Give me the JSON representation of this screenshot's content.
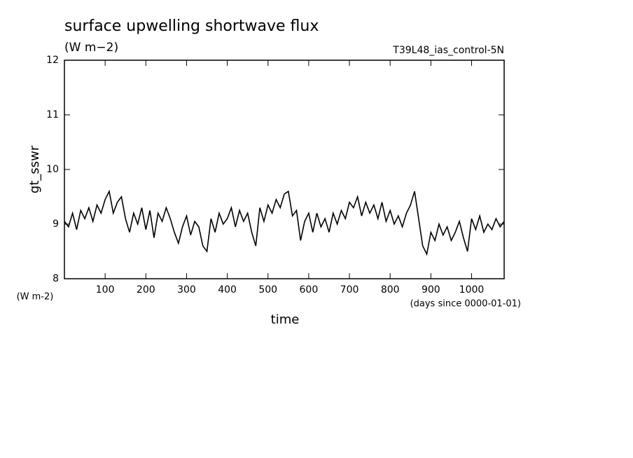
{
  "chart_data": {
    "type": "line",
    "title": "surface upwelling shortwave flux",
    "subtitle": "(W m−2)",
    "run_label": "T39L48_ias_control-5N",
    "ylabel": "gt_sswr",
    "yunit": "(W m-2)",
    "xlabel": "time",
    "xunit": "(days since 0000-01-01)",
    "xlim": [
      0,
      1080
    ],
    "ylim": [
      8,
      12
    ],
    "xticks": [
      100,
      200,
      300,
      400,
      500,
      600,
      700,
      800,
      900,
      1000
    ],
    "yticks": [
      8,
      9,
      10,
      11,
      12
    ],
    "x": [
      0,
      10,
      20,
      30,
      40,
      50,
      60,
      70,
      80,
      90,
      100,
      110,
      120,
      130,
      140,
      150,
      160,
      170,
      180,
      190,
      200,
      210,
      220,
      230,
      240,
      250,
      260,
      270,
      280,
      290,
      300,
      310,
      320,
      330,
      340,
      350,
      360,
      370,
      380,
      390,
      400,
      410,
      420,
      430,
      440,
      450,
      460,
      470,
      480,
      490,
      500,
      510,
      520,
      530,
      540,
      550,
      560,
      570,
      580,
      590,
      600,
      610,
      620,
      630,
      640,
      650,
      660,
      670,
      680,
      690,
      700,
      710,
      720,
      730,
      740,
      750,
      760,
      770,
      780,
      790,
      800,
      810,
      820,
      830,
      840,
      850,
      860,
      870,
      880,
      890,
      900,
      910,
      920,
      930,
      940,
      950,
      960,
      970,
      980,
      990,
      1000,
      1010,
      1020,
      1030,
      1040,
      1050,
      1060,
      1070,
      1080
    ],
    "series": [
      {
        "color": "#000000",
        "values": [
          9.05,
          8.95,
          9.2,
          8.9,
          9.25,
          9.1,
          9.3,
          9.05,
          9.35,
          9.2,
          9.45,
          9.6,
          9.2,
          9.4,
          9.5,
          9.1,
          8.85,
          9.2,
          9.0,
          9.3,
          8.9,
          9.25,
          8.75,
          9.2,
          9.05,
          9.3,
          9.1,
          8.85,
          8.65,
          8.95,
          9.15,
          8.8,
          9.05,
          8.95,
          8.6,
          8.5,
          9.1,
          8.85,
          9.2,
          9.0,
          9.1,
          9.3,
          8.95,
          9.25,
          9.05,
          9.2,
          8.85,
          8.6,
          9.3,
          9.05,
          9.35,
          9.2,
          9.45,
          9.3,
          9.55,
          9.6,
          9.15,
          9.25,
          8.7,
          9.05,
          9.2,
          8.85,
          9.2,
          8.95,
          9.1,
          8.85,
          9.2,
          9.0,
          9.25,
          9.1,
          9.4,
          9.3,
          9.5,
          9.15,
          9.4,
          9.2,
          9.35,
          9.1,
          9.4,
          9.05,
          9.25,
          9.0,
          9.15,
          8.95,
          9.2,
          9.35,
          9.6,
          9.1,
          8.6,
          8.45,
          8.85,
          8.7,
          9.0,
          8.8,
          8.95,
          8.7,
          8.85,
          9.05,
          8.75,
          8.5,
          9.1,
          8.9,
          9.15,
          8.85,
          9.0,
          8.9,
          9.1,
          8.95,
          9.05
        ]
      }
    ]
  }
}
